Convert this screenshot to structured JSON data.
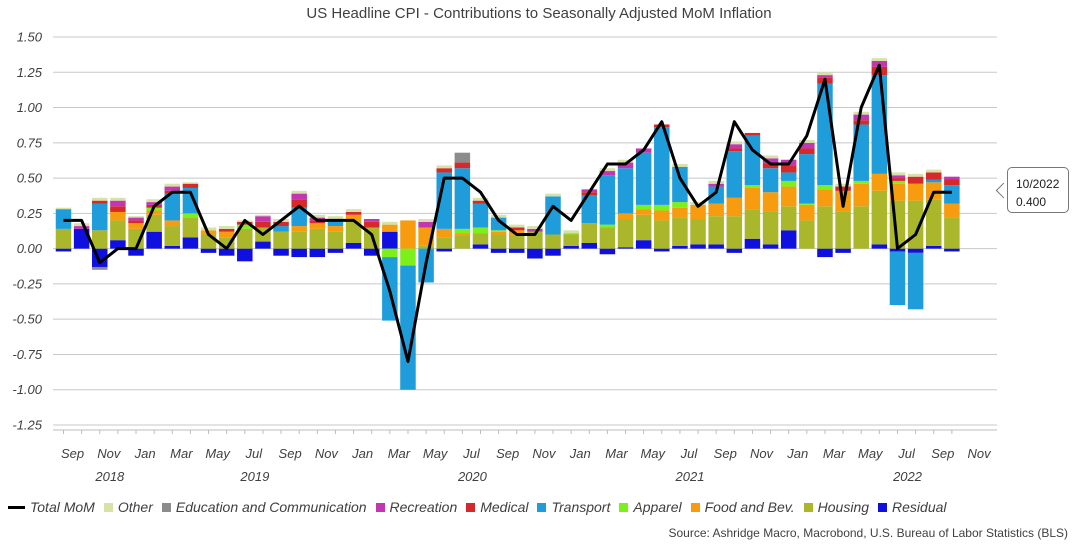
{
  "title": "US Headline CPI - Contributions to Seasonally Adjusted MoM Inflation",
  "source": "Source: Ashridge Macro, Macrobond, U.S. Bureau of Labor Statistics (BLS)",
  "callout": {
    "date": "10/2022",
    "value": "0.400"
  },
  "legend": [
    {
      "label": "Total MoM",
      "kind": "line",
      "color": "#000000"
    },
    {
      "label": "Other",
      "kind": "box",
      "color": "#d6e2a8"
    },
    {
      "label": "Education and Communication",
      "kind": "box",
      "color": "#8c8c8c"
    },
    {
      "label": "Recreation",
      "kind": "box",
      "color": "#c236b4"
    },
    {
      "label": "Medical",
      "kind": "box",
      "color": "#d62a2a"
    },
    {
      "label": "Transport",
      "kind": "box",
      "color": "#1f9ddb"
    },
    {
      "label": "Apparel",
      "kind": "box",
      "color": "#7cf01a"
    },
    {
      "label": "Food and Bev.",
      "kind": "box",
      "color": "#f79b0f"
    },
    {
      "label": "Housing",
      "kind": "box",
      "color": "#aab72b"
    },
    {
      "label": "Residual",
      "kind": "box",
      "color": "#0f0fe0"
    }
  ],
  "chart_data": {
    "type": "bar",
    "stacked": true,
    "grid": true,
    "ylim": [
      -1.25,
      1.5
    ],
    "y_ticks": [
      "1.50",
      "1.25",
      "1.00",
      "0.75",
      "0.50",
      "0.25",
      "0.00",
      "-0.25",
      "-0.50",
      "-0.75",
      "-1.00",
      "-1.25"
    ],
    "x_month_labels": [
      "Sep",
      "Nov",
      "Jan",
      "Mar",
      "May",
      "Jul",
      "Sep",
      "Nov",
      "Jan",
      "Mar",
      "May",
      "Jul",
      "Sep",
      "Nov",
      "Jan",
      "Mar",
      "May",
      "Jul",
      "Sep",
      "Nov",
      "Jan",
      "Mar",
      "May",
      "Jul",
      "Sep",
      "Nov"
    ],
    "x_year_labels": [
      "2018",
      "2019",
      "2020",
      "2021",
      "2022"
    ],
    "x": [
      "2018-09",
      "2018-10",
      "2018-11",
      "2018-12",
      "2019-01",
      "2019-02",
      "2019-03",
      "2019-04",
      "2019-05",
      "2019-06",
      "2019-07",
      "2019-08",
      "2019-09",
      "2019-10",
      "2019-11",
      "2019-12",
      "2020-01",
      "2020-02",
      "2020-03",
      "2020-04",
      "2020-05",
      "2020-06",
      "2020-07",
      "2020-08",
      "2020-09",
      "2020-10",
      "2020-11",
      "2020-12",
      "2021-01",
      "2021-02",
      "2021-03",
      "2021-04",
      "2021-05",
      "2021-06",
      "2021-07",
      "2021-08",
      "2021-09",
      "2021-10",
      "2021-11",
      "2021-12",
      "2022-01",
      "2022-02",
      "2022-03",
      "2022-04",
      "2022-05",
      "2022-06",
      "2022-07",
      "2022-08",
      "2022-09",
      "2022-10"
    ],
    "total_mom": [
      0.2,
      0.2,
      -0.1,
      0.0,
      0.0,
      0.3,
      0.4,
      0.4,
      0.1,
      0.0,
      0.2,
      0.1,
      0.2,
      0.3,
      0.2,
      0.2,
      0.2,
      0.1,
      -0.3,
      -0.8,
      -0.1,
      0.5,
      0.5,
      0.4,
      0.2,
      0.1,
      0.1,
      0.3,
      0.2,
      0.4,
      0.6,
      0.6,
      0.7,
      0.9,
      0.5,
      0.3,
      0.4,
      0.9,
      0.7,
      0.6,
      0.6,
      0.8,
      1.2,
      0.3,
      1.0,
      1.3,
      0.0,
      0.1,
      0.4,
      0.4
    ],
    "series": [
      {
        "name": "Residual",
        "values": [
          -0.02,
          0.14,
          -0.13,
          0.06,
          -0.05,
          0.12,
          0.02,
          0.08,
          -0.03,
          -0.05,
          -0.09,
          0.05,
          -0.05,
          -0.06,
          -0.06,
          -0.03,
          0.04,
          -0.05,
          0.12,
          0.0,
          0.0,
          -0.02,
          0.0,
          0.03,
          -0.03,
          -0.03,
          -0.07,
          -0.05,
          0.02,
          0.04,
          -0.04,
          0.01,
          0.06,
          -0.02,
          0.02,
          0.03,
          0.03,
          -0.03,
          0.07,
          0.03,
          0.13,
          0.0,
          -0.06,
          -0.03,
          0.0,
          0.03,
          -0.02,
          -0.03,
          0.02,
          -0.02
        ]
      },
      {
        "name": "Housing",
        "values": [
          0.14,
          0.0,
          0.13,
          0.14,
          0.14,
          0.12,
          0.14,
          0.14,
          0.1,
          0.08,
          0.14,
          0.1,
          0.12,
          0.12,
          0.14,
          0.12,
          0.16,
          0.15,
          0.0,
          0.0,
          0.02,
          0.08,
          0.09,
          0.08,
          0.1,
          0.09,
          0.12,
          0.1,
          0.08,
          0.14,
          0.15,
          0.2,
          0.18,
          0.2,
          0.2,
          0.18,
          0.2,
          0.23,
          0.21,
          0.23,
          0.17,
          0.2,
          0.3,
          0.26,
          0.3,
          0.38,
          0.34,
          0.34,
          0.33,
          0.22
        ]
      },
      {
        "name": "Food and Bev.",
        "values": [
          0.0,
          0.0,
          0.0,
          0.06,
          0.04,
          0.03,
          0.04,
          0.0,
          0.03,
          0.04,
          0.0,
          0.0,
          0.0,
          0.04,
          0.04,
          0.04,
          0.04,
          0.0,
          0.05,
          0.2,
          0.13,
          0.06,
          0.02,
          0.0,
          0.02,
          0.04,
          0.0,
          0.0,
          0.0,
          0.0,
          0.0,
          0.04,
          0.04,
          0.07,
          0.07,
          0.1,
          0.09,
          0.13,
          0.15,
          0.14,
          0.14,
          0.11,
          0.12,
          0.15,
          0.16,
          0.12,
          0.12,
          0.12,
          0.12,
          0.1
        ]
      },
      {
        "name": "Apparel",
        "values": [
          0.0,
          0.0,
          0.0,
          0.0,
          0.0,
          0.02,
          0.0,
          0.03,
          0.0,
          0.0,
          0.03,
          0.0,
          0.0,
          0.0,
          0.0,
          0.0,
          0.0,
          0.0,
          -0.06,
          -0.12,
          0.0,
          0.0,
          0.03,
          0.04,
          0.01,
          0.0,
          0.0,
          0.0,
          0.01,
          0.0,
          0.02,
          0.0,
          0.03,
          0.04,
          0.04,
          0.0,
          0.0,
          0.0,
          0.02,
          0.0,
          0.04,
          0.01,
          0.03,
          0.0,
          0.02,
          0.0,
          0.02,
          0.0,
          0.0,
          0.0
        ]
      },
      {
        "name": "Transport",
        "values": [
          0.14,
          0.0,
          0.19,
          0.0,
          0.0,
          0.0,
          0.19,
          0.18,
          0.0,
          0.0,
          0.0,
          0.0,
          0.04,
          0.13,
          0.0,
          0.05,
          0.0,
          0.0,
          -0.45,
          -0.88,
          -0.24,
          0.4,
          0.43,
          0.17,
          0.09,
          0.0,
          0.0,
          0.27,
          0.0,
          0.2,
          0.35,
          0.32,
          0.37,
          0.55,
          0.25,
          0.0,
          0.12,
          0.33,
          0.35,
          0.17,
          0.06,
          0.35,
          0.72,
          0.0,
          0.4,
          0.7,
          -0.38,
          -0.4,
          0.02,
          0.13
        ]
      },
      {
        "name": "Medical",
        "values": [
          0.0,
          0.0,
          0.02,
          0.04,
          0.02,
          0.02,
          0.02,
          0.03,
          0.0,
          0.02,
          0.02,
          0.04,
          0.03,
          0.06,
          0.02,
          0.0,
          0.02,
          0.04,
          0.0,
          0.0,
          0.0,
          0.03,
          0.04,
          0.02,
          0.0,
          0.02,
          0.0,
          0.0,
          0.0,
          0.02,
          0.0,
          0.0,
          0.0,
          0.02,
          0.0,
          0.0,
          0.0,
          0.02,
          0.02,
          0.03,
          0.05,
          0.04,
          0.04,
          0.03,
          0.03,
          0.06,
          0.02,
          0.05,
          0.05,
          0.04
        ]
      },
      {
        "name": "Recreation",
        "values": [
          0.0,
          0.02,
          0.0,
          0.04,
          0.02,
          0.02,
          0.03,
          0.0,
          0.0,
          0.0,
          0.0,
          0.04,
          0.0,
          0.04,
          0.02,
          0.0,
          0.0,
          0.02,
          0.0,
          0.0,
          0.04,
          0.0,
          0.0,
          0.0,
          0.0,
          0.0,
          0.02,
          0.0,
          0.0,
          0.02,
          0.03,
          0.04,
          0.03,
          0.0,
          0.0,
          0.0,
          0.02,
          0.03,
          0.0,
          0.04,
          0.04,
          0.04,
          0.02,
          0.0,
          0.04,
          0.04,
          0.02,
          0.0,
          0.0,
          0.02
        ]
      },
      {
        "name": "Education and Communication",
        "values": [
          0.0,
          0.0,
          -0.02,
          0.0,
          0.0,
          0.0,
          0.0,
          0.0,
          0.0,
          0.0,
          0.0,
          0.0,
          0.0,
          0.0,
          0.0,
          0.0,
          0.0,
          0.0,
          0.0,
          0.0,
          0.0,
          0.0,
          0.07,
          0.0,
          0.0,
          0.0,
          0.0,
          0.0,
          0.0,
          0.0,
          0.0,
          0.0,
          0.0,
          0.0,
          0.0,
          0.0,
          0.0,
          0.0,
          0.0,
          0.0,
          0.0,
          0.0,
          0.0,
          0.0,
          0.0,
          0.0,
          0.0,
          0.0,
          0.0,
          0.0
        ]
      },
      {
        "name": "Other",
        "values": [
          0.01,
          0.02,
          0.02,
          0.02,
          0.01,
          0.02,
          0.02,
          0.01,
          0.02,
          0.02,
          0.01,
          0.01,
          0.02,
          0.02,
          0.02,
          0.02,
          0.02,
          0.0,
          0.02,
          0.0,
          0.02,
          0.02,
          0.0,
          0.02,
          0.02,
          0.02,
          0.02,
          0.02,
          0.02,
          0.0,
          0.02,
          0.02,
          0.0,
          0.0,
          0.02,
          0.02,
          0.02,
          0.02,
          0.0,
          0.02,
          0.0,
          0.02,
          0.02,
          0.02,
          0.02,
          0.02,
          0.02,
          0.02,
          0.02,
          0.0
        ]
      }
    ]
  }
}
